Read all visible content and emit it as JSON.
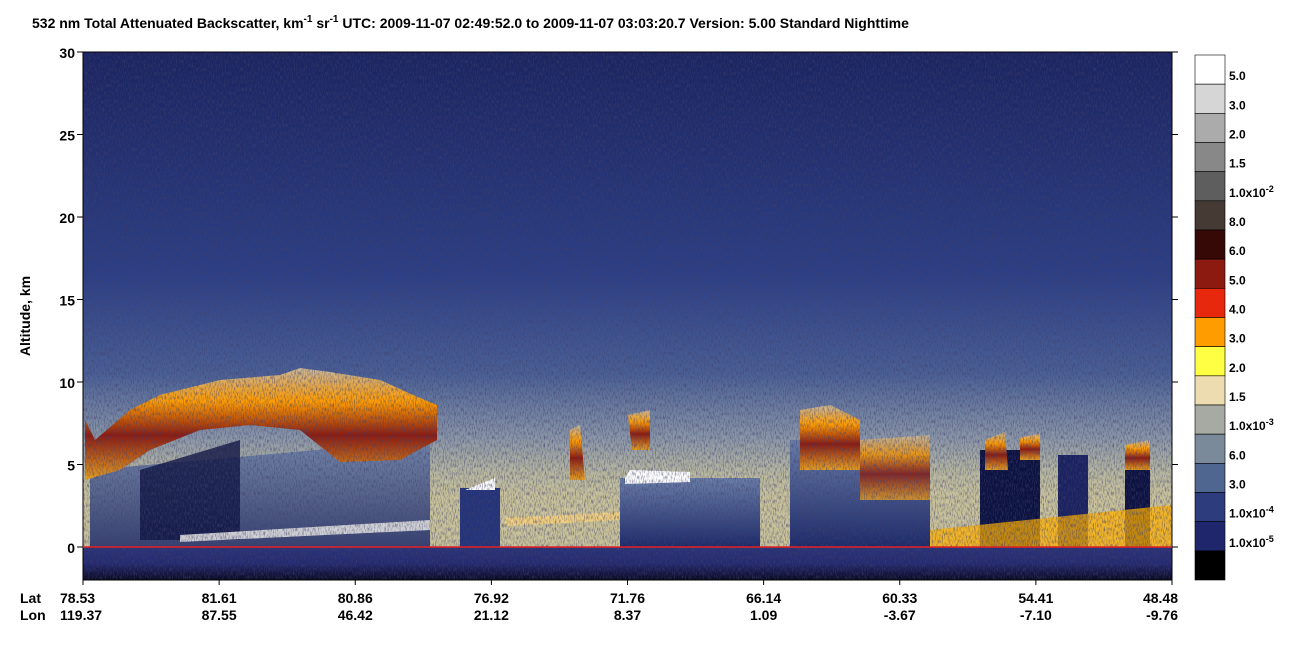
{
  "chart_data": {
    "type": "curtain",
    "title_parts": [
      {
        "text": "532 nm Total Attenuated Backscatter, km"
      },
      {
        "sup": "-1"
      },
      {
        "text": " sr"
      },
      {
        "sup": "-1"
      },
      {
        "text": "    UTC:  2009-11-07 02:49:52.0  to  2009-11-07 03:03:20.7    Version: 5.00  Standard  Nighttime"
      }
    ],
    "y_label": "Altitude, km",
    "ylim": [
      -2,
      30
    ],
    "yticks": [
      0,
      5,
      10,
      15,
      20,
      25,
      30
    ],
    "row_labels": [
      "Lat",
      "Lon"
    ],
    "lat_labels": [
      "78.53",
      "81.61",
      "80.86",
      "76.92",
      "71.76",
      "66.14",
      "60.33",
      "54.41",
      "48.48"
    ],
    "lon_labels": [
      "119.37",
      "87.55",
      "46.42",
      "21.12",
      "8.37",
      "1.09",
      "-3.67",
      "-7.10",
      "-9.76"
    ],
    "colorbar": {
      "colors": [
        "#ffffff",
        "#d6d6d6",
        "#ababab",
        "#888888",
        "#5e5e5e",
        "#463a34",
        "#360806",
        "#8c1a10",
        "#e8280c",
        "#ff9c00",
        "#ffff44",
        "#ecdcb0",
        "#a7aaa2",
        "#7a8a9a",
        "#4e6690",
        "#2d3c7c",
        "#20266c",
        "#000000"
      ],
      "labels": [
        "5.0",
        "3.0",
        "2.0",
        "1.5",
        {
          "text": "1.0x10",
          "sup": "-2"
        },
        "8.0",
        "6.0",
        "5.0",
        "4.0",
        "3.0",
        "2.0",
        "1.5",
        {
          "text": "1.0x10",
          "sup": "-3"
        },
        "6.0",
        "3.0",
        {
          "text": "1.0x10",
          "sup": "-4"
        },
        {
          "text": "1.0x10",
          "sup": "-5"
        }
      ]
    }
  }
}
